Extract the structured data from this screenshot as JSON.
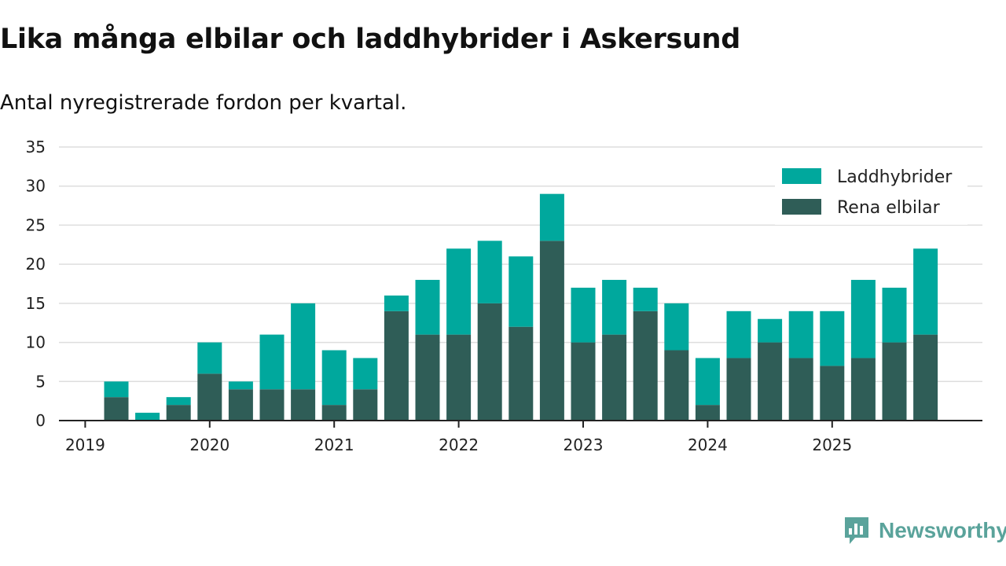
{
  "chart_data": {
    "type": "bar",
    "stacked": true,
    "title": "Lika många elbilar och laddhybrider i Askersund",
    "subtitle": "Antal nyregistrerade fordon per kvartal.",
    "categories": [
      "2019 K1",
      "2019 K2",
      "2019 K3",
      "2019 K4",
      "2020 K1",
      "2020 K2",
      "2020 K3",
      "2020 K4",
      "2021 K1",
      "2021 K2",
      "2021 K3",
      "2021 K4",
      "2022 K1",
      "2022 K2",
      "2022 K3",
      "2022 K4",
      "2023 K1",
      "2023 K2",
      "2023 K3",
      "2023 K4",
      "2024 K1",
      "2024 K2",
      "2024 K3",
      "2024 K4",
      "2025 K1",
      "2025 K2",
      "2025 K3"
    ],
    "series": [
      {
        "name": "Rena elbilar",
        "color": "#2f5d57",
        "values": [
          3,
          0,
          2,
          6,
          4,
          4,
          4,
          2,
          4,
          14,
          11,
          11,
          15,
          12,
          23,
          10,
          11,
          14,
          9,
          2,
          8,
          10,
          8,
          7,
          8,
          10,
          11
        ]
      },
      {
        "name": "Laddhybrider",
        "color": "#00a89d",
        "values": [
          2,
          1,
          1,
          4,
          1,
          7,
          11,
          7,
          4,
          2,
          7,
          11,
          8,
          9,
          6,
          7,
          7,
          3,
          6,
          6,
          6,
          3,
          6,
          7,
          10,
          7,
          11
        ]
      }
    ],
    "ylim": [
      0,
      35
    ],
    "yticks": [
      0,
      5,
      10,
      15,
      20,
      25,
      30,
      35
    ],
    "xticks": [
      "2019",
      "2020",
      "2021",
      "2022",
      "2023",
      "2024",
      "2025"
    ],
    "grid": true,
    "legend": {
      "position": "top-right",
      "order": [
        "Laddhybrider",
        "Rena elbilar"
      ]
    }
  },
  "brand": {
    "name": "Newsworthy",
    "color": "#5aa39b",
    "icon": "newsworthy-logo-icon"
  }
}
